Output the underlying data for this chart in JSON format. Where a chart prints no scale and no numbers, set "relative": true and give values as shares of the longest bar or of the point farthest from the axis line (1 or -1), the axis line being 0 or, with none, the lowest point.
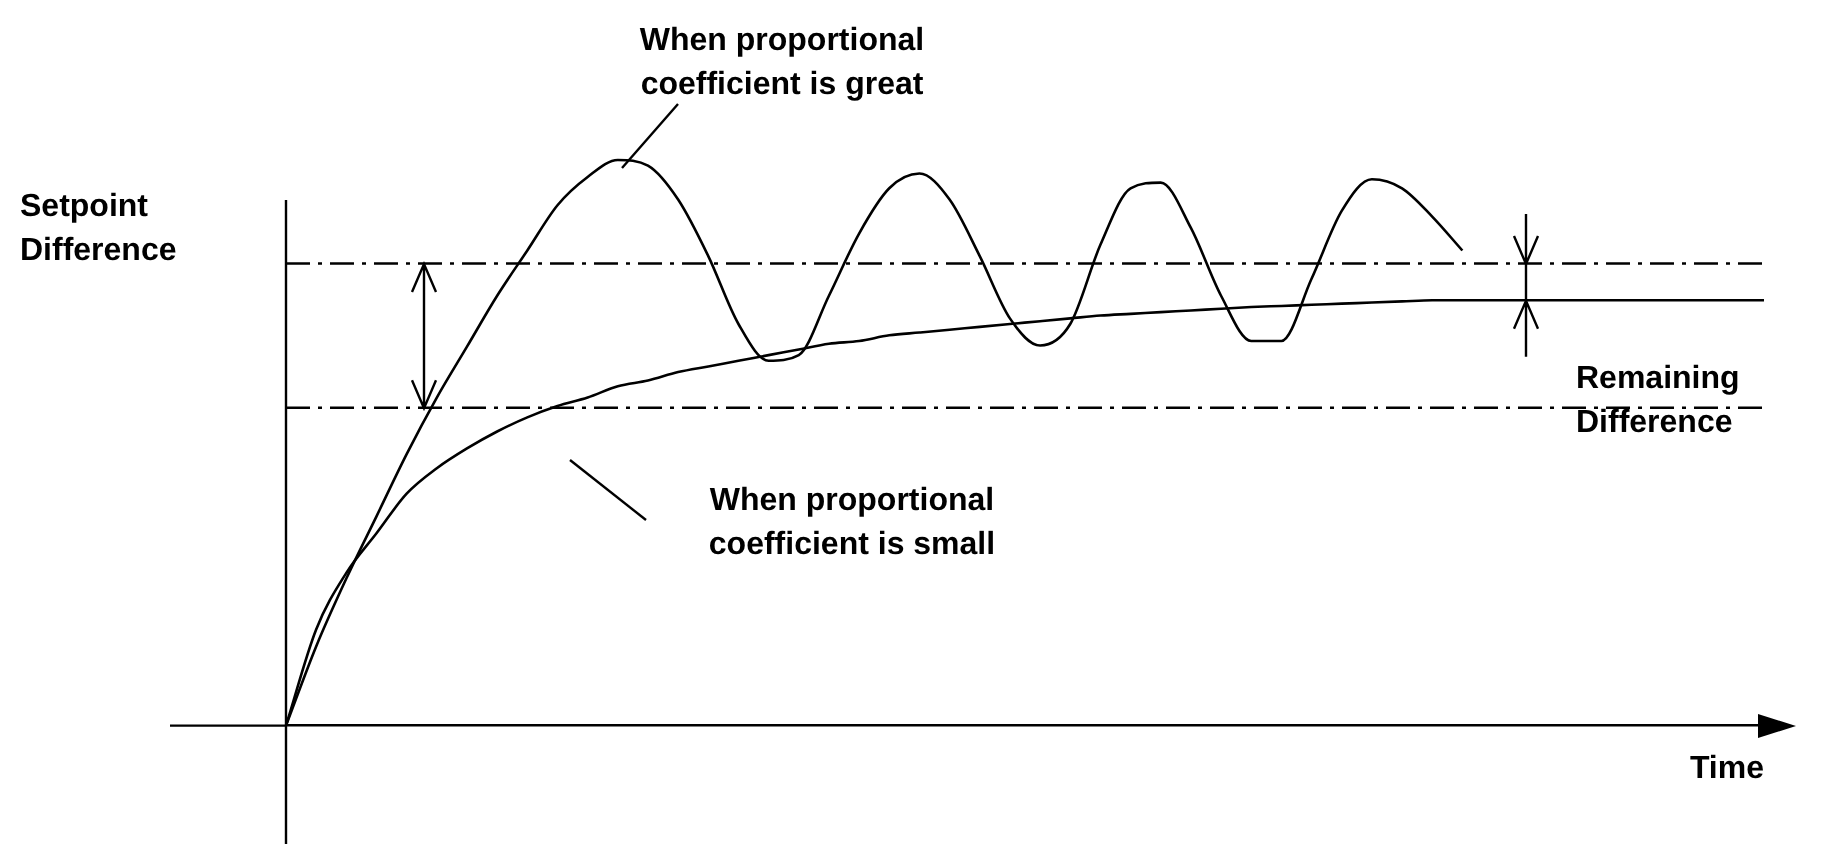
{
  "chart_data": {
    "type": "line",
    "relative": true,
    "xlabel": "Time",
    "categories": [
      null,
      null,
      null,
      null,
      null,
      null,
      null,
      null,
      null,
      null,
      null,
      null,
      null,
      null,
      null,
      null,
      null,
      null,
      null,
      null,
      null,
      null,
      null,
      null,
      null,
      null,
      null,
      null,
      null,
      null,
      null,
      null,
      null,
      null,
      null,
      null,
      null,
      null,
      null,
      null,
      null,
      null,
      null,
      null,
      null,
      null,
      null,
      null,
      null,
      null
    ],
    "series": [
      {
        "color": "#000000",
        "values": [
          0,
          0.14,
          0.26,
          0.37,
          0.48,
          0.58,
          0.67,
          0.76,
          0.84,
          0.92,
          0.97,
          1,
          0.99,
          0.93,
          0.83,
          0.71,
          0.645,
          0.655,
          0.76,
          0.87,
          0.95,
          0.976,
          0.93,
          0.83,
          0.72,
          0.672,
          0.71,
          0.85,
          0.95,
          0.96,
          0.88,
          0.76,
          0.68,
          0.68,
          0.79,
          0.91,
          0.966,
          0.95,
          0.9,
          0.84,
          null,
          null,
          null,
          null,
          null,
          null,
          null,
          null,
          null,
          null
        ]
      },
      {
        "color": "#000000",
        "values": [
          0,
          0.17,
          0.27,
          0.34,
          0.41,
          0.455,
          0.49,
          0.52,
          0.545,
          0.565,
          0.58,
          0.6,
          0.61,
          0.625,
          0.635,
          0.645,
          0.655,
          0.665,
          0.675,
          0.68,
          0.69,
          0.695,
          0.7,
          0.705,
          0.71,
          0.715,
          0.72,
          0.725,
          0.728,
          0.731,
          0.734,
          0.737,
          0.74,
          0.742,
          0.744,
          0.746,
          0.748,
          0.75,
          0.752,
          0.752,
          0.752,
          0.752,
          0.752,
          0.752,
          0.752,
          0.752,
          0.752,
          0.752,
          0.752,
          0.752
        ]
      }
    ],
    "ref_lines": [
      {
        "axis": "y",
        "value": 0.817,
        "line_style": "dashed",
        "color": "#000000"
      },
      {
        "axis": "y",
        "value": 0.562,
        "line_style": "dashed",
        "color": "#000000"
      }
    ],
    "annotations": [
      "When proportional coefficient is great",
      "Setpoint Difference",
      "When proportional coefficient is small",
      "Remaining Difference"
    ]
  }
}
